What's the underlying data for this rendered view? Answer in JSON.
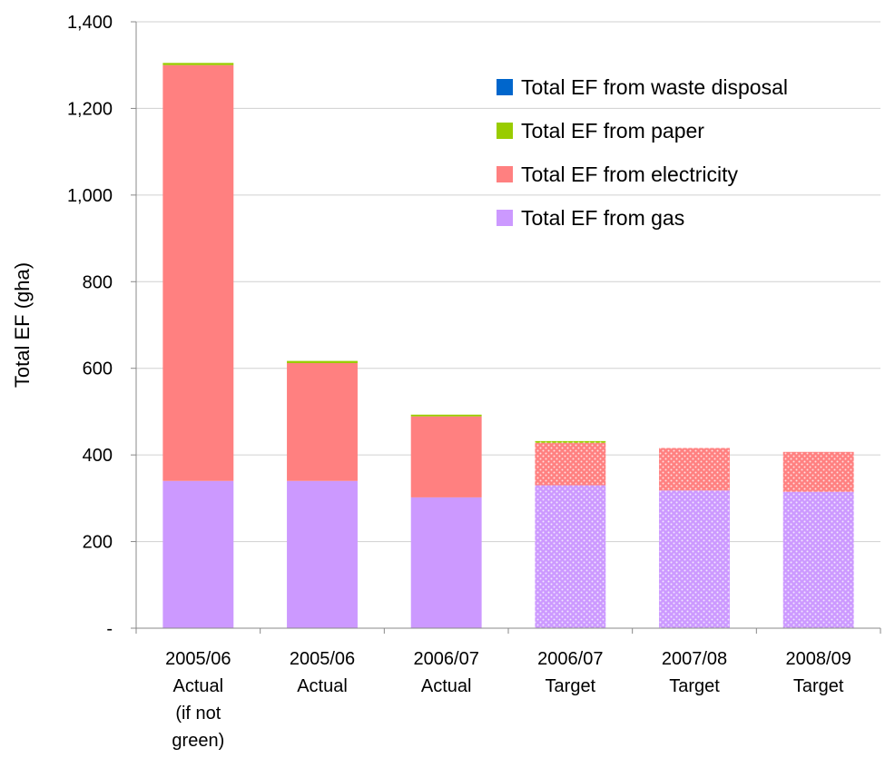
{
  "chart_data": {
    "type": "bar",
    "stacked": true,
    "ylabel": "Total EF (gha)",
    "xlabel": "",
    "ylim": [
      0,
      1400
    ],
    "yticks": [
      "-",
      "200",
      "400",
      "600",
      "800",
      "1,000",
      "1,200",
      "1,400"
    ],
    "ytick_values": [
      0,
      200,
      400,
      600,
      800,
      1000,
      1200,
      1400
    ],
    "grid": true,
    "legend_position": "top-right",
    "categories": [
      [
        "2005/06",
        "Actual",
        "(if not",
        "green)"
      ],
      [
        "2005/06",
        "Actual"
      ],
      [
        "2006/07",
        "Actual"
      ],
      [
        "2006/07",
        "Target"
      ],
      [
        "2007/08",
        "Target"
      ],
      [
        "2008/09",
        "Target"
      ]
    ],
    "hatched_categories": [
      3,
      4,
      5
    ],
    "series": [
      {
        "name": "Total EF from gas",
        "color": "#cc99ff",
        "values": [
          340,
          340,
          302,
          330,
          318,
          315
        ]
      },
      {
        "name": "Total EF from electricity",
        "color": "#ff8080",
        "values": [
          960,
          272,
          187,
          98,
          98,
          92
        ]
      },
      {
        "name": "Total EF from paper",
        "color": "#99cc00",
        "values": [
          5,
          5,
          4,
          4,
          0,
          0
        ]
      },
      {
        "name": "Total EF from waste disposal",
        "color": "#0066cc",
        "values": [
          0,
          0,
          0,
          0,
          0,
          0
        ]
      }
    ],
    "legend_order": [
      3,
      2,
      1,
      0
    ]
  }
}
